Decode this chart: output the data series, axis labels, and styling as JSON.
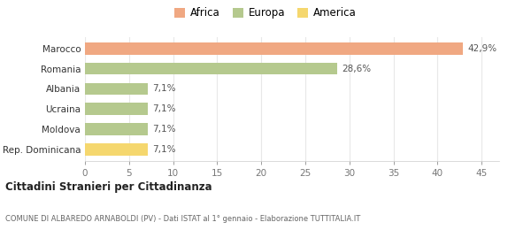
{
  "categories": [
    "Rep. Dominicana",
    "Moldova",
    "Ucraina",
    "Albania",
    "Romania",
    "Marocco"
  ],
  "values": [
    7.1,
    7.1,
    7.1,
    7.1,
    28.6,
    42.9
  ],
  "labels": [
    "7,1%",
    "7,1%",
    "7,1%",
    "7,1%",
    "28,6%",
    "42,9%"
  ],
  "colors": [
    "#f5d76e",
    "#b5c98e",
    "#b5c98e",
    "#b5c98e",
    "#b5c98e",
    "#f0a882"
  ],
  "legend_items": [
    {
      "label": "Africa",
      "color": "#f0a882"
    },
    {
      "label": "Europa",
      "color": "#b5c98e"
    },
    {
      "label": "America",
      "color": "#f5d76e"
    }
  ],
  "xlim": [
    0,
    47
  ],
  "xticks": [
    0,
    5,
    10,
    15,
    20,
    25,
    30,
    35,
    40,
    45
  ],
  "title_bold": "Cittadini Stranieri per Cittadinanza",
  "subtitle": "COMUNE DI ALBAREDO ARNABOLDI (PV) - Dati ISTAT al 1° gennaio - Elaborazione TUTTITALIA.IT",
  "background_color": "#ffffff",
  "grid_color": "#e8e8e8"
}
